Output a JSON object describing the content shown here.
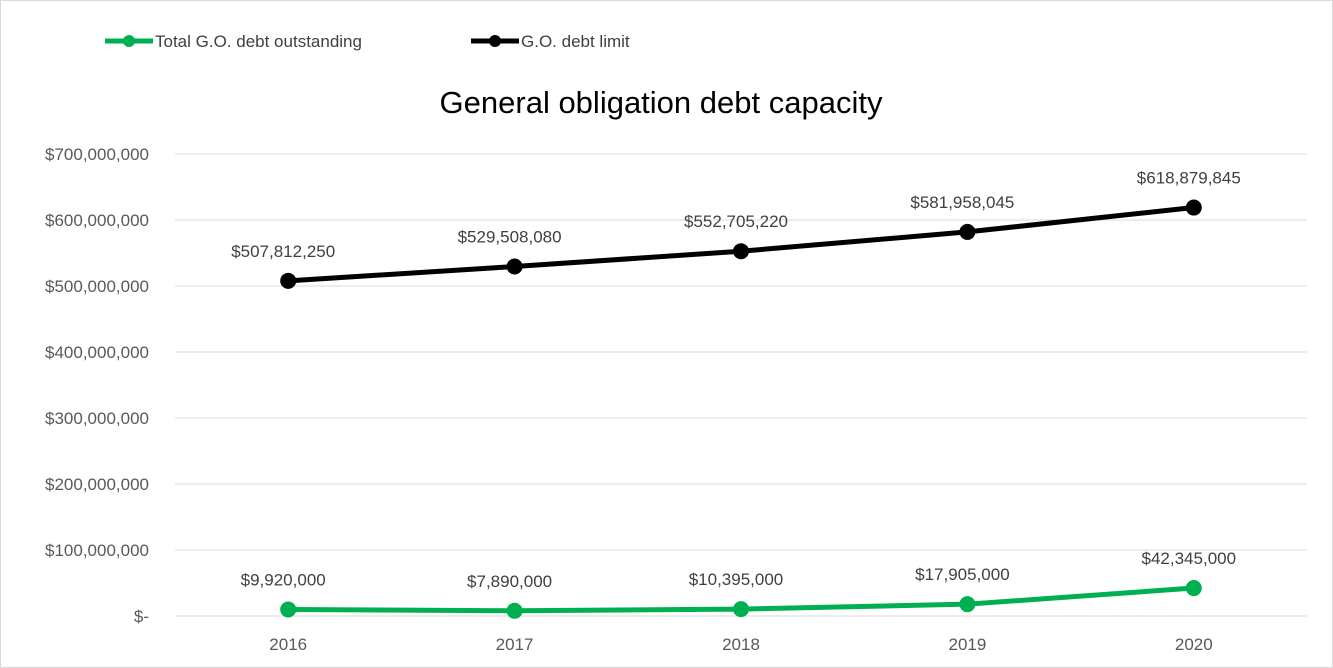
{
  "chart_data": {
    "type": "line",
    "title": "General obligation debt capacity",
    "xlabel": "",
    "ylabel": "",
    "categories": [
      "2016",
      "2017",
      "2018",
      "2019",
      "2020"
    ],
    "y_ticks": [
      {
        "value": 0,
        "label": "$-"
      },
      {
        "value": 100000000,
        "label": "$100,000,000"
      },
      {
        "value": 200000000,
        "label": "$200,000,000"
      },
      {
        "value": 300000000,
        "label": "$300,000,000"
      },
      {
        "value": 400000000,
        "label": "$400,000,000"
      },
      {
        "value": 500000000,
        "label": "$500,000,000"
      },
      {
        "value": 600000000,
        "label": "$600,000,000"
      },
      {
        "value": 700000000,
        "label": "$700,000,000"
      }
    ],
    "ylim": [
      0,
      700000000
    ],
    "grid": true,
    "legend_position": "top-left",
    "series": [
      {
        "name": "Total G.O. debt outstanding",
        "color": "#00b050",
        "values": [
          9920000,
          7890000,
          10395000,
          17905000,
          42345000
        ],
        "labels": [
          "$9,920,000",
          "$7,890,000",
          "$10,395,000",
          "$17,905,000",
          "$42,345,000"
        ]
      },
      {
        "name": "G.O. debt limit",
        "color": "#000000",
        "values": [
          507812250,
          529508080,
          552705220,
          581958045,
          618879845
        ],
        "labels": [
          "$507,812,250",
          "$529,508,080",
          "$552,705,220",
          "$581,958,045",
          "$618,879,845"
        ]
      }
    ]
  }
}
